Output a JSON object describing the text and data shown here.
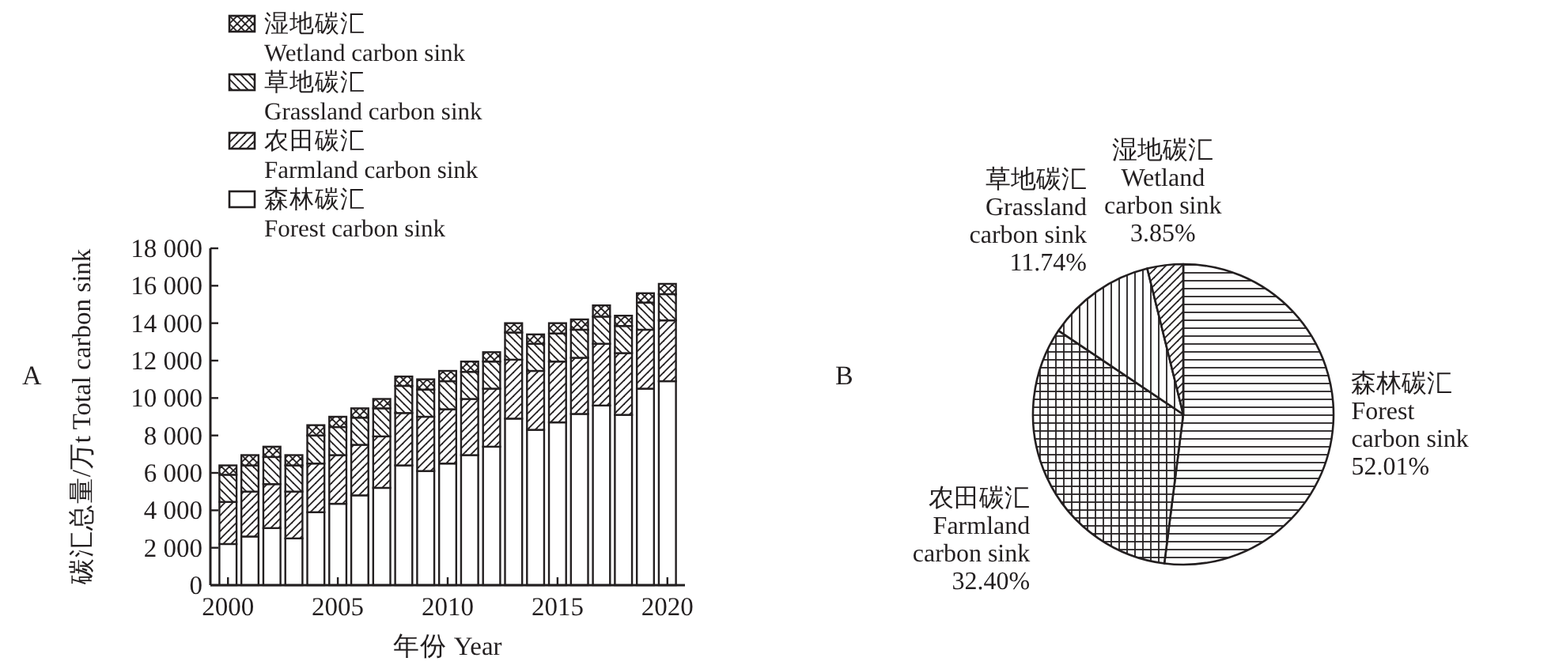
{
  "chart_data": [
    {
      "type": "bar",
      "stacked": true,
      "xlabel": "年份 Year",
      "ylabel": "碳汇总量/万t Total carbon sink",
      "legend": "top left",
      "annotations": [
        "A"
      ],
      "x": [
        2000,
        2001,
        2002,
        2003,
        2004,
        2005,
        2006,
        2007,
        2008,
        2009,
        2010,
        2011,
        2012,
        2013,
        2014,
        2015,
        2016,
        2017,
        2018,
        2019,
        2020
      ],
      "xlim": [
        1999.2,
        2020.8
      ],
      "xticks": [
        2000,
        2005,
        2010,
        2015,
        2020
      ],
      "ylim": [
        0,
        18000
      ],
      "yticks": [
        0,
        {
          "value": 2000,
          "label": "2 000"
        },
        {
          "value": 4000,
          "label": "4 000"
        },
        {
          "value": 6000,
          "label": "6 000"
        },
        {
          "value": 8000,
          "label": "8 000"
        },
        {
          "value": 10000,
          "label": "10 000"
        },
        {
          "value": 12000,
          "label": "12 000"
        },
        {
          "value": 14000,
          "label": "14 000"
        },
        {
          "value": 16000,
          "label": "16 000"
        },
        {
          "value": 18000,
          "label": "18 000"
        }
      ],
      "series": [
        {
          "name": "森林碳汇 Forest carbon sink",
          "color": "#231f20",
          "values": [
            2200,
            2600,
            3050,
            2500,
            3900,
            4350,
            4800,
            5200,
            6400,
            6100,
            6500,
            6950,
            7400,
            8900,
            8300,
            8700,
            9150,
            9600,
            9100,
            10500,
            10900
          ]
        },
        {
          "name": "农田碳汇 Farmland carbon sink",
          "color": "#231f20",
          "values": [
            2250,
            2400,
            2350,
            2500,
            2600,
            2600,
            2700,
            2750,
            2800,
            2900,
            2900,
            3000,
            3100,
            3150,
            3150,
            3250,
            3000,
            3300,
            3300,
            3150,
            3250
          ]
        },
        {
          "name": "草地碳汇 Grassland carbon sink",
          "color": "#231f20",
          "values": [
            1450,
            1400,
            1450,
            1400,
            1500,
            1500,
            1450,
            1500,
            1450,
            1450,
            1500,
            1450,
            1450,
            1450,
            1450,
            1500,
            1500,
            1450,
            1450,
            1450,
            1400
          ]
        },
        {
          "name": "湿地碳汇 Wetland carbon sink",
          "color": "#231f20",
          "values": [
            500,
            550,
            550,
            550,
            550,
            550,
            500,
            500,
            500,
            550,
            550,
            550,
            500,
            500,
            500,
            550,
            550,
            600,
            550,
            500,
            550
          ]
        }
      ]
    },
    {
      "type": "pie",
      "annotations": [
        "B"
      ],
      "categories": [
        "森林碳汇 Forest carbon sink",
        "农田碳汇 Farmland carbon sink",
        "草地碳汇 Grassland carbon sink",
        "湿地碳汇 Wetland carbon sink"
      ],
      "values": [
        52.01,
        32.4,
        11.74,
        3.85
      ],
      "value_labels": [
        "52.01%",
        "32.40%",
        "11.74%",
        "3.85%"
      ],
      "colors": [
        "#231f20",
        "#231f20",
        "#231f20",
        "#231f20"
      ]
    }
  ]
}
